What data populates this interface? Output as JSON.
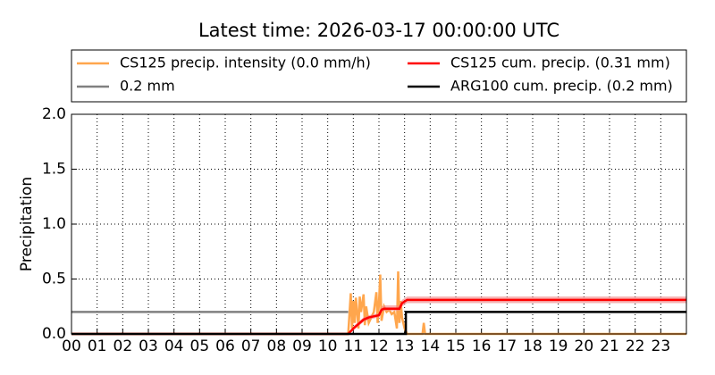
{
  "chart_data": {
    "type": "line",
    "title": "Latest time: 2026-03-17 00:00:00 UTC",
    "y_label": "Precipitation",
    "xlim": [
      0,
      24
    ],
    "xticks": [
      {
        "value": 0,
        "label": "00"
      },
      {
        "value": 1,
        "label": "01"
      },
      {
        "value": 2,
        "label": "02"
      },
      {
        "value": 3,
        "label": "03"
      },
      {
        "value": 4,
        "label": "04"
      },
      {
        "value": 5,
        "label": "05"
      },
      {
        "value": 6,
        "label": "06"
      },
      {
        "value": 7,
        "label": "07"
      },
      {
        "value": 8,
        "label": "08"
      },
      {
        "value": 9,
        "label": "09"
      },
      10,
      11,
      12,
      13,
      14,
      15,
      16,
      17,
      18,
      19,
      20,
      21,
      22,
      23
    ],
    "ylim": [
      0,
      2
    ],
    "yticks": [
      {
        "value": 0,
        "label": "0.0"
      },
      0.5,
      {
        "value": 1,
        "label": "1.0"
      },
      1.5,
      {
        "value": 2,
        "label": "2.0"
      }
    ],
    "grid": true,
    "series": [
      {
        "name": "CS125 precip. intensity (0.0 mm/h)",
        "color": "#ffa64d",
        "x": [
          0,
          10.8,
          10.9,
          10.95,
          11.0,
          11.05,
          11.1,
          11.2,
          11.25,
          11.3,
          11.4,
          11.45,
          11.5,
          11.6,
          11.7,
          11.8,
          11.9,
          11.95,
          12.0,
          12.05,
          12.1,
          12.2,
          12.3,
          12.4,
          12.5,
          12.6,
          12.7,
          12.75,
          12.8,
          12.85,
          12.9,
          13.0,
          13.1,
          13.7,
          13.75,
          13.8,
          24
        ],
        "values": [
          0,
          0,
          0.37,
          0.05,
          0.3,
          0.1,
          0.33,
          0.05,
          0.34,
          0.2,
          0.36,
          0.08,
          0.25,
          0.1,
          0.15,
          0.2,
          0.38,
          0.1,
          0.28,
          0.54,
          0.12,
          0.25,
          0.2,
          0.22,
          0.18,
          0.2,
          0.05,
          0.57,
          0.1,
          0.3,
          0.15,
          0.05,
          0,
          0,
          0.1,
          0,
          0
        ]
      },
      {
        "name": "0.2 mm",
        "color": "#808080",
        "x": [
          0,
          10.8
        ],
        "values": [
          0.2,
          0.2
        ]
      },
      {
        "name": "CS125 cum. precip. (0.31 mm)",
        "color": "#ff0000",
        "band_color": "#f08080",
        "x": [
          0,
          10.8,
          11.0,
          11.2,
          11.4,
          11.6,
          11.8,
          12.0,
          12.1,
          12.2,
          12.8,
          12.9,
          13.1,
          24
        ],
        "values": [
          0,
          0,
          0.05,
          0.09,
          0.13,
          0.15,
          0.16,
          0.17,
          0.22,
          0.23,
          0.23,
          0.28,
          0.31,
          0.31
        ],
        "band_upper": [
          0,
          0,
          0.07,
          0.11,
          0.15,
          0.17,
          0.18,
          0.19,
          0.25,
          0.26,
          0.26,
          0.31,
          0.34,
          0.34
        ],
        "band_lower": [
          0,
          0,
          0.03,
          0.07,
          0.11,
          0.13,
          0.14,
          0.15,
          0.2,
          0.21,
          0.21,
          0.25,
          0.28,
          0.28
        ]
      },
      {
        "name": "ARG100 cum. precip. (0.2 mm)",
        "color": "#000000",
        "x": [
          0,
          13.05,
          13.05,
          24
        ],
        "values": [
          0,
          0,
          0.2,
          0.2
        ]
      }
    ]
  }
}
